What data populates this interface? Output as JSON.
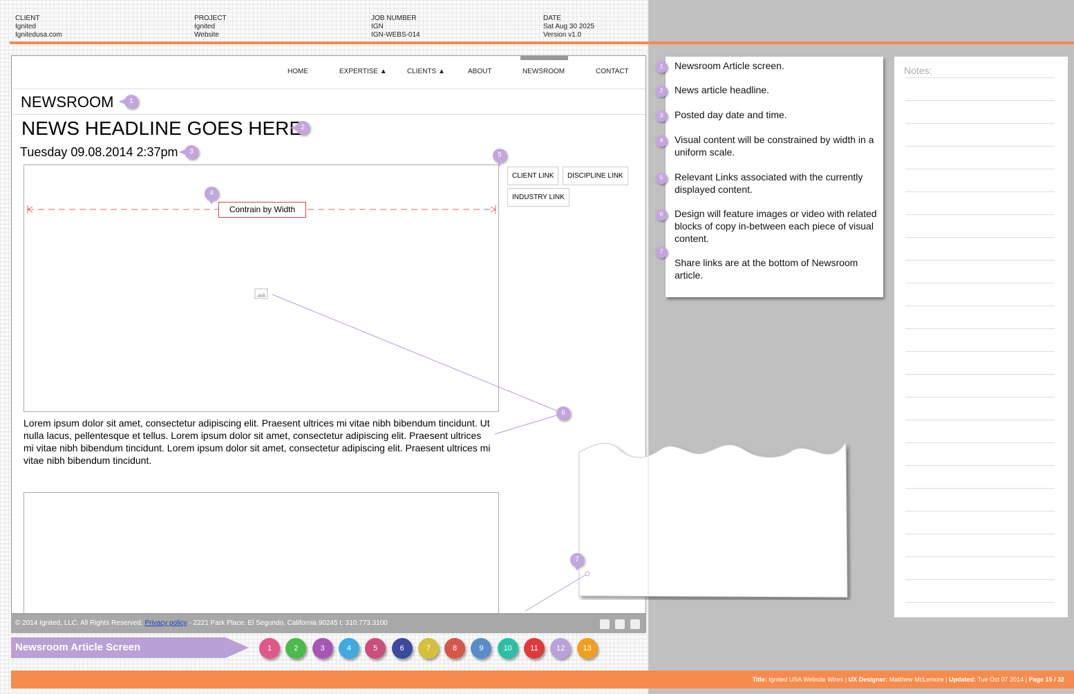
{
  "header": {
    "fields": [
      {
        "label": "CLIENT",
        "line1": "Ignited",
        "line2": "Ignitedusa.com"
      },
      {
        "label": "PROJECT",
        "line1": "Ignited",
        "line2": "Website"
      },
      {
        "label": "JOB NUMBER",
        "line1": "IGN",
        "line2": "IGN-WEBS-014"
      },
      {
        "label": "DATE",
        "line1": "Sat Aug 30 2025",
        "line2": "Version v1.0"
      }
    ]
  },
  "nav": {
    "items": [
      "HOME",
      "EXPERTISE ▲",
      "CLIENTS ▲",
      "ABOUT",
      "NEWSROOM",
      "CONTACT"
    ]
  },
  "article": {
    "section": "NEWSROOM",
    "headline": "NEWS HEADLINE GOES HERE",
    "posted": "Tuesday 09.08.2014 2:37pm",
    "constraint_label": "Contrain by Width",
    "links": [
      "CLIENT LINK",
      "DISCIPLINE LINK",
      "INDUSTRY LINK"
    ],
    "body": "Lorem ipsum dolor sit amet, consectetur adipiscing elit. Praesent ultrices mi vitae nibh bibendum tincidunt. Ut nulla lacus, pellentesque et tellus. Lorem ipsum dolor sit amet, consectetur adipiscing elit. Praesent ultrices mi vitae nibh bibendum tincidunt. Lorem ipsum dolor sit amet, consectetur adipiscing elit. Praesent ultrices mi vitae nibh bibendum tincidunt."
  },
  "footer": {
    "copyright": "© 2014 Ignited, LLC. All Rights Reserved.",
    "privacy": "Privacy policy",
    "address": " -  2221 Park Place. El Segundo, California 90245 t: 310.773.3100"
  },
  "annotations": [
    {
      "number": "1",
      "text": "Newsroom Article screen."
    },
    {
      "number": "2",
      "text": "News article headline."
    },
    {
      "number": "3",
      "text": "Posted day date and time."
    },
    {
      "number": "4",
      "text": "Visual content will be constrained by width in a uniform scale."
    },
    {
      "number": "5",
      "text": "Relevant Links associated with the currently displayed content."
    },
    {
      "number": "6",
      "text": "Design will feature images or video with related blocks of copy in-between each piece of visual content."
    },
    {
      "number": "7",
      "text": "Share links are at the bottom of Newsroom article."
    }
  ],
  "notes": {
    "label": "Notes:"
  },
  "screen": {
    "title": "Newsroom Article Screen",
    "pages": [
      {
        "label": "1",
        "color": "#e0578a"
      },
      {
        "label": "2",
        "color": "#4cba4a"
      },
      {
        "label": "3",
        "color": "#a855b5"
      },
      {
        "label": "4",
        "color": "#3fa9e0"
      },
      {
        "label": "5",
        "color": "#c9507a"
      },
      {
        "label": "6",
        "color": "#3b4a9e"
      },
      {
        "label": "7",
        "color": "#d4c03a"
      },
      {
        "label": "8",
        "color": "#d4574a"
      },
      {
        "label": "9",
        "color": "#5a8cc9"
      },
      {
        "label": "10",
        "color": "#2bbfa6"
      },
      {
        "label": "11",
        "color": "#e0393d"
      },
      {
        "label": "12",
        "color": "#b9a2d9"
      },
      {
        "label": "13",
        "color": "#f0a020"
      }
    ]
  },
  "meta": {
    "separator": "|",
    "items": [
      {
        "label": "Title:",
        "value": "Ignited USA Website Wires"
      },
      {
        "label": "UX Designer:",
        "value": "Matthew McLemore"
      },
      {
        "label": "Updated:",
        "value": "Tue Oct 07 2014"
      }
    ],
    "page": "Page 15 / 32"
  }
}
